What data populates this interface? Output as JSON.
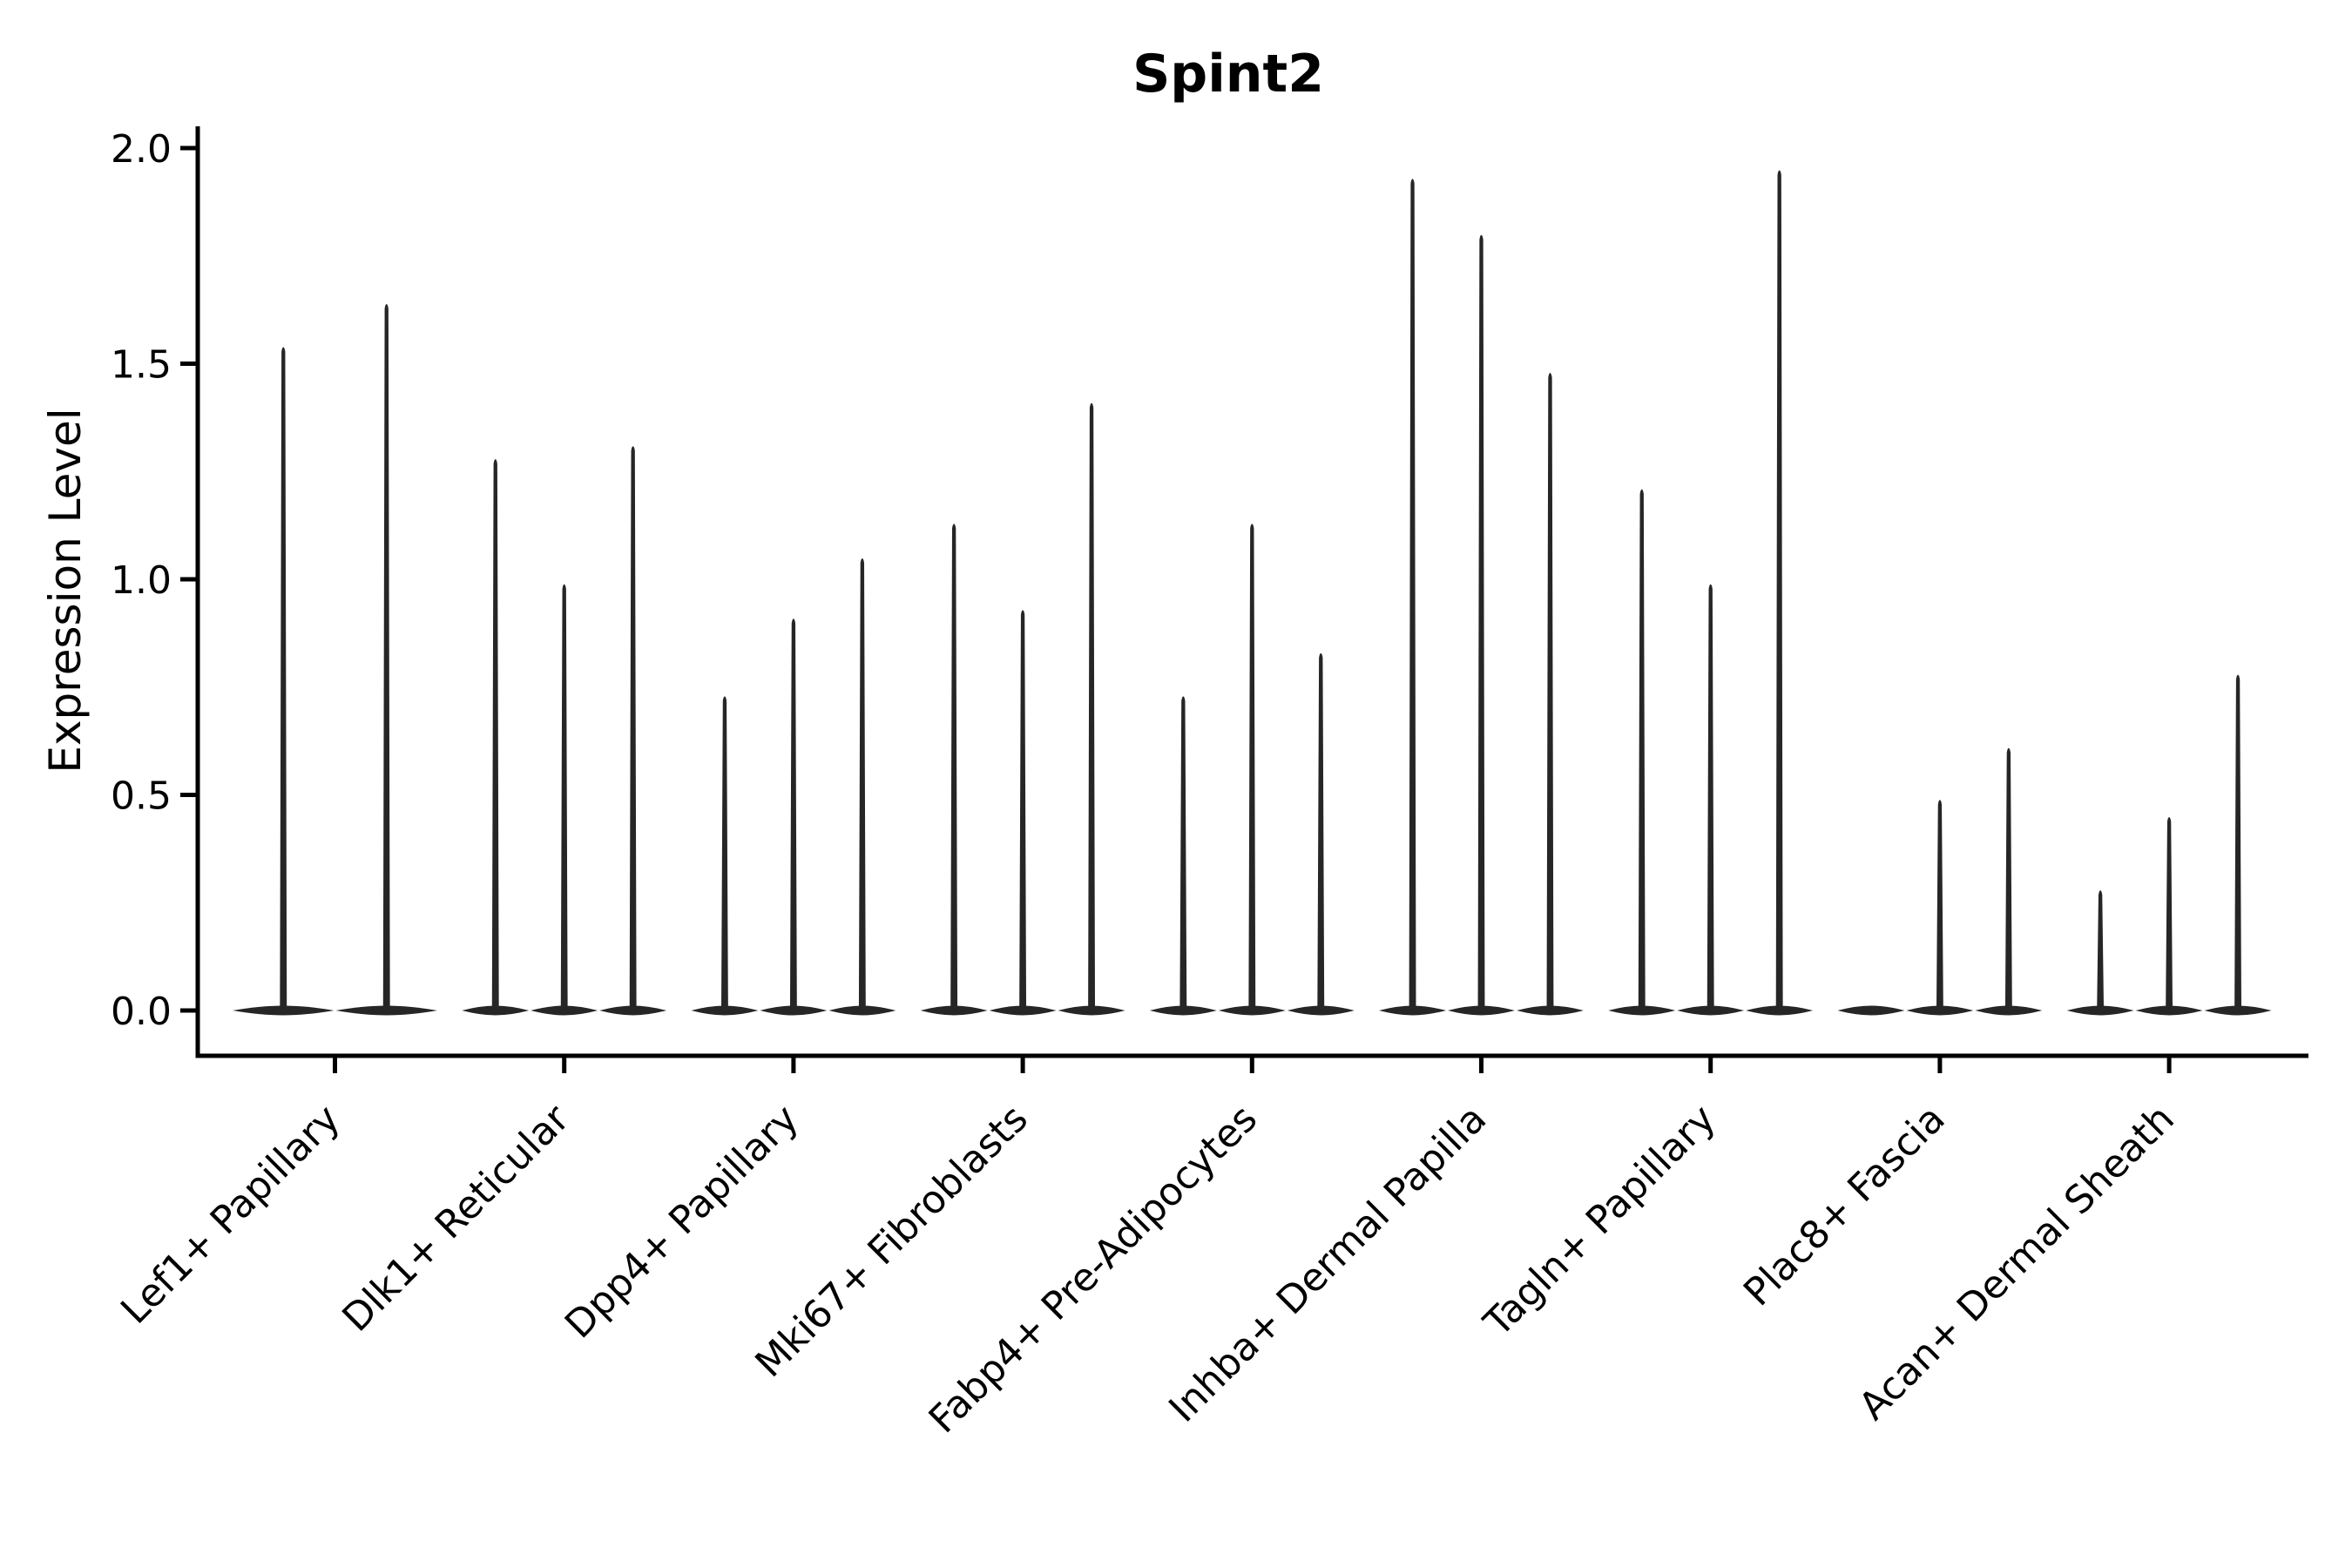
{
  "chart_data": {
    "type": "violin",
    "title": "Spint2",
    "ylabel": "Expression Level",
    "xlabel": "",
    "legend": "none",
    "grid": false,
    "background": "#ffffff",
    "ylim": [
      -0.1,
      2.05
    ],
    "yticks": [
      {
        "value": 0.0,
        "label": "0.0"
      },
      {
        "value": 0.5,
        "label": "0.5"
      },
      {
        "value": 1.0,
        "label": "1.0"
      },
      {
        "value": 1.5,
        "label": "1.5"
      },
      {
        "value": 2.0,
        "label": "2.0"
      }
    ],
    "categories": [
      "Lef1+ Papillary",
      "Dlk1+ Reticular",
      "Dpp4+ Papillary",
      "Mki67+ Fibroblasts",
      "Fabp4+ Pre-Adipocytes",
      "Inhba+ Dermal Papilla",
      "Tagln+ Papillary",
      "Plac8+ Fascia",
      "Acan+ Dermal Sheath"
    ],
    "groups": [
      {
        "label": "Lef1+ Papillary",
        "violin_max_values": [
          1.54,
          1.64
        ]
      },
      {
        "label": "Dlk1+ Reticular",
        "violin_max_values": [
          1.28,
          0.99,
          1.31
        ]
      },
      {
        "label": "Dpp4+ Papillary",
        "violin_max_values": [
          0.73,
          0.91,
          1.05
        ]
      },
      {
        "label": "Mki67+ Fibroblasts",
        "violin_max_values": [
          1.13,
          0.93,
          1.41
        ]
      },
      {
        "label": "Fabp4+ Pre-Adipocytes",
        "violin_max_values": [
          0.73,
          1.13,
          0.83
        ]
      },
      {
        "label": "Inhba+ Dermal Papilla",
        "violin_max_values": [
          1.93,
          1.8,
          1.48
        ]
      },
      {
        "label": "Tagln+ Papillary",
        "violin_max_values": [
          1.21,
          0.99,
          1.95
        ]
      },
      {
        "label": "Plac8+ Fascia",
        "violin_max_values": [
          0.0,
          0.49,
          0.61
        ]
      },
      {
        "label": "Acan+ Dermal Sheath",
        "violin_max_values": [
          0.28,
          0.45,
          0.78
        ]
      }
    ],
    "notes": "Thin collapsed violins: each violin is a flat body at expression 0 with a narrow spike up to its max value; a value of 0.0 means a flat violin with no spike.",
    "colors": {
      "violin": "#262626",
      "axis": "#000000",
      "text": "#000000",
      "background": "#ffffff"
    }
  }
}
